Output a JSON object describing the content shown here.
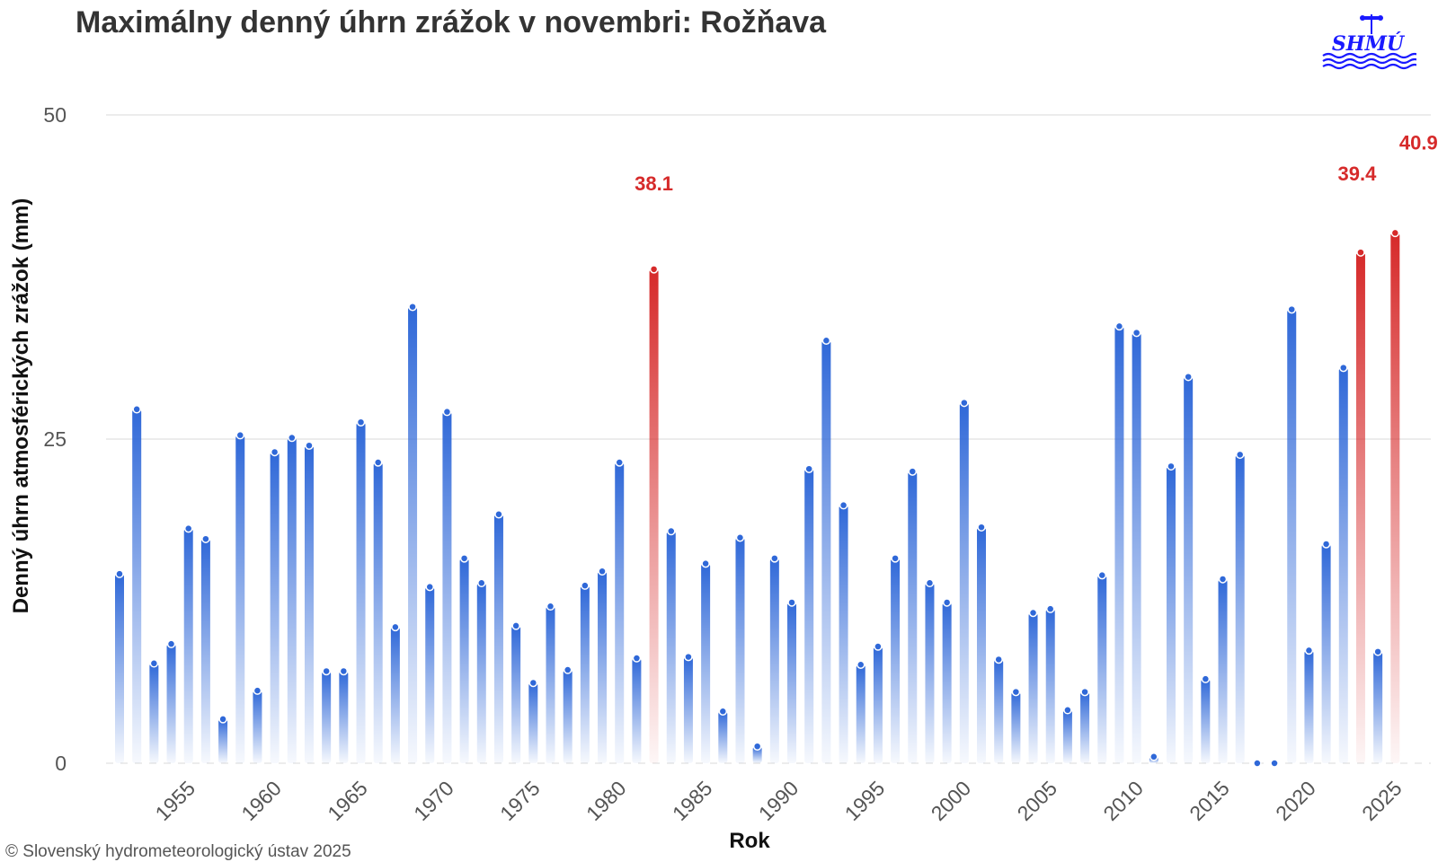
{
  "title": "Maximálny denný úhrn zrážok v novembri: Rožňava",
  "credits": "© Slovenský hydrometeorologický ústav 2025",
  "logo": {
    "text": "SHMÚ",
    "color": "#1a1aff"
  },
  "colors": {
    "normal": "#2f68d8",
    "record": "#d62a2a",
    "grid": "#e6e6e6"
  },
  "chart_data": {
    "type": "bar",
    "title": "Maximálny denný úhrn zrážok v novembri: Rožňava",
    "xlabel": "Rok",
    "ylabel": "Denný úhrn atmosférických zrážok (mm)",
    "ylim": [
      0,
      50
    ],
    "yticks": [
      0,
      25,
      50
    ],
    "xticks": [
      1955,
      1960,
      1965,
      1970,
      1975,
      1980,
      1985,
      1990,
      1995,
      2000,
      2005,
      2010,
      2015,
      2020,
      2025
    ],
    "grid": true,
    "x": [
      1951,
      1952,
      1953,
      1954,
      1955,
      1956,
      1957,
      1958,
      1959,
      1960,
      1961,
      1962,
      1963,
      1964,
      1965,
      1966,
      1967,
      1968,
      1969,
      1970,
      1971,
      1972,
      1973,
      1974,
      1975,
      1976,
      1977,
      1978,
      1979,
      1980,
      1981,
      1982,
      1983,
      1984,
      1985,
      1986,
      1987,
      1988,
      1989,
      1990,
      1991,
      1992,
      1993,
      1994,
      1995,
      1996,
      1997,
      1998,
      1999,
      2000,
      2001,
      2002,
      2003,
      2004,
      2005,
      2006,
      2007,
      2008,
      2009,
      2010,
      2011,
      2012,
      2013,
      2014,
      2015,
      2016,
      2017,
      2018,
      2019,
      2020,
      2021,
      2022,
      2023,
      2024,
      2025
    ],
    "values": [
      14.6,
      27.3,
      7.7,
      9.2,
      18.1,
      17.3,
      3.4,
      25.3,
      5.6,
      24.0,
      25.1,
      24.5,
      7.1,
      7.1,
      26.3,
      23.2,
      10.5,
      35.2,
      13.6,
      27.1,
      15.8,
      13.9,
      19.2,
      10.6,
      6.2,
      12.1,
      7.2,
      13.7,
      14.8,
      23.2,
      8.1,
      38.1,
      17.9,
      8.2,
      15.4,
      4.0,
      17.4,
      1.3,
      15.8,
      12.4,
      22.7,
      32.6,
      19.9,
      7.6,
      9.0,
      15.8,
      22.5,
      13.9,
      12.4,
      27.8,
      18.2,
      8.0,
      5.5,
      11.6,
      11.9,
      4.1,
      5.5,
      14.5,
      33.7,
      33.2,
      0.5,
      22.9,
      29.8,
      6.5,
      14.2,
      23.8,
      0.0,
      0.0,
      35.0,
      8.7,
      16.9,
      30.5,
      39.4,
      8.6,
      40.9
    ],
    "highlighted": [
      {
        "x": 1982,
        "value": 38.1,
        "label": "38.1"
      },
      {
        "x": 2023,
        "value": 39.4,
        "label": "39.4"
      },
      {
        "x": 2025,
        "value": 40.9,
        "label": "40.9"
      }
    ]
  }
}
